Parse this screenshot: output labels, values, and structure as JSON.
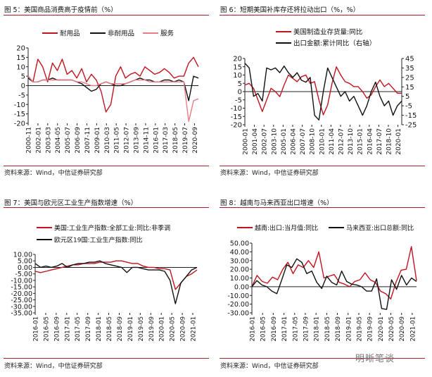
{
  "colors": {
    "red": "#c0141e",
    "black": "#111111",
    "pink": "#e87c86",
    "blue": "#5a7ab8"
  },
  "source": "资料来源：Wind，中信证券研究部",
  "watermark": "明晰笔谈",
  "chart_data": [
    {
      "type": "line",
      "title": "图 5：美国商品消费高于疫情前（%）",
      "x_ticks": [
        "2000-11",
        "2002-01",
        "2003-03",
        "2004-05",
        "2005-07",
        "2006-09",
        "2007-11",
        "2009-01",
        "2010-03",
        "2011-05",
        "2012-07",
        "2013-09",
        "2014-11",
        "2016-01",
        "2017-03",
        "2018-05",
        "2019-07",
        "2020-09"
      ],
      "ylim": [
        -20,
        20
      ],
      "y_ticks": [
        20,
        15,
        10,
        5,
        0,
        -5,
        -10,
        -15,
        -20
      ],
      "series": [
        {
          "name": "耐用品",
          "color": "red",
          "values": [
            5,
            2,
            14,
            10,
            2,
            12,
            8,
            14,
            6,
            8,
            4,
            9,
            2,
            6,
            3,
            -3,
            -14,
            -10,
            5,
            10,
            4,
            6,
            7,
            5,
            10,
            8,
            6,
            7,
            9,
            7,
            4,
            5,
            5,
            12,
            15,
            10
          ]
        },
        {
          "name": "非耐用品",
          "color": "black",
          "values": [
            4,
            2,
            2,
            3,
            3,
            4,
            3,
            3,
            3,
            3,
            2,
            1,
            -1,
            -3,
            -2,
            1,
            2,
            1,
            0,
            0,
            1,
            2,
            3,
            4,
            3,
            3,
            2,
            2,
            3,
            3,
            2,
            3,
            2,
            -8,
            5,
            4
          ]
        },
        {
          "name": "服务",
          "color": "pink",
          "values": [
            5,
            2,
            2,
            3,
            3,
            3,
            3,
            3,
            3,
            3,
            2,
            2,
            1,
            0,
            0,
            1,
            2,
            1,
            1,
            1,
            1,
            2,
            3,
            3,
            3,
            2,
            2,
            2,
            2,
            2,
            2,
            2,
            2,
            -19,
            -8,
            -7
          ]
        }
      ]
    },
    {
      "type": "line",
      "title": "图 6：短期美国补库存还将拉动出口（%，%）",
      "x_ticks": [
        "2000-01",
        "2001-04",
        "2002-07",
        "2003-10",
        "2005-01",
        "2006-04",
        "2007-07",
        "2008-10",
        "2010-01",
        "2011-04",
        "2012-07",
        "2013-10",
        "2015-01",
        "2016-04",
        "2017-07",
        "2018-10",
        "2020-01"
      ],
      "ylim": [
        -20,
        20
      ],
      "y_ticks": [
        20,
        15,
        10,
        5,
        0,
        -5,
        -10,
        -15,
        -20
      ],
      "y2lim": [
        -25,
        45
      ],
      "y2_ticks": [
        45,
        35,
        25,
        15,
        5,
        -5,
        -15,
        -25
      ],
      "series": [
        {
          "name": "美国制造业存货量:同比",
          "color": "red",
          "axis": "left",
          "values": [
            4,
            5,
            2,
            -5,
            -12,
            -5,
            2,
            0,
            -3,
            4,
            10,
            8,
            6,
            9,
            10,
            5,
            6,
            -5,
            -14,
            -8,
            5,
            15,
            10,
            6,
            5,
            3,
            3,
            0,
            -4,
            -2,
            3,
            7,
            3,
            5,
            2,
            -1,
            -1
          ]
        },
        {
          "name": "出口金额:累计同比（右轴）",
          "color": "black",
          "axis": "right",
          "values": [
            40,
            35,
            5,
            8,
            0,
            35,
            33,
            35,
            30,
            37,
            30,
            25,
            30,
            22,
            20,
            25,
            -15,
            -20,
            10,
            35,
            25,
            15,
            5,
            10,
            0,
            5,
            -5,
            -15,
            -5,
            10,
            20,
            5,
            -5,
            0,
            -15,
            -5,
            0
          ]
        }
      ]
    },
    {
      "type": "line",
      "title": "图 7：美国与欧元区工业生产指数增速（%）",
      "x_ticks": [
        "2016-01",
        "2016-05",
        "2016-09",
        "2017-01",
        "2017-05",
        "2017-09",
        "2018-01",
        "2018-05",
        "2018-09",
        "2019-01",
        "2019-05",
        "2019-09",
        "2020-01",
        "2020-05",
        "2020-09",
        "2021-01"
      ],
      "ylim": [
        -35,
        10
      ],
      "y_ticks": [
        "10.00",
        "5.00",
        "0.00",
        "-5.00",
        "-10.00",
        "-15.00",
        "-20.00",
        "-25.00",
        "-30.00",
        "-35.00"
      ],
      "series": [
        {
          "name": "美国:工业生产指数:全部工业:同比:非季调",
          "color": "red",
          "values": [
            -3,
            -4,
            -3,
            -2,
            -1,
            0,
            1,
            2,
            2,
            3,
            3,
            3,
            4,
            4,
            4,
            5,
            5,
            4,
            3,
            3,
            1,
            0,
            0,
            -1,
            -1,
            -2,
            -17,
            -12,
            -7,
            -5,
            -2
          ]
        },
        {
          "name": "欧元区19国:工业生产指数:同比",
          "color": "black",
          "values": [
            3,
            0,
            1,
            0,
            1,
            3,
            0,
            2,
            3,
            3,
            4,
            4,
            5,
            3,
            2,
            1,
            0,
            -4,
            0,
            0,
            -1,
            -2,
            -2,
            -2,
            -3,
            -10,
            -28,
            -12,
            -7,
            -2,
            0
          ]
        }
      ]
    },
    {
      "type": "line",
      "title": "图 8：越南与马来西亚出口增速（%）",
      "x_ticks": [
        "2016-01",
        "2016-05",
        "2016-09",
        "2017-01",
        "2017-05",
        "2017-09",
        "2018-01",
        "2018-05",
        "2018-09",
        "2019-01",
        "2019-05",
        "2019-09",
        "2020-01",
        "2020-05",
        "2020-09",
        "2021-01"
      ],
      "ylim": [
        -30,
        50
      ],
      "y_ticks": [
        "50.00",
        "40.00",
        "30.00",
        "20.00",
        "10.00",
        "0.00",
        "-10.00",
        "-20.00",
        "-30.00"
      ],
      "series": [
        {
          "name": "越南:出口:当月值:同比",
          "color": "red",
          "values": [
            0,
            13,
            6,
            4,
            11,
            8,
            20,
            28,
            15,
            25,
            22,
            30,
            22,
            40,
            10,
            12,
            14,
            5,
            3,
            0,
            6,
            8,
            16,
            8,
            5,
            -5,
            -8,
            -14,
            5,
            19,
            20,
            46,
            7
          ]
        },
        {
          "name": "马来西亚:出口总额:同比",
          "color": "black",
          "values": [
            0,
            7,
            2,
            0,
            -5,
            -8,
            8,
            25,
            22,
            32,
            28,
            15,
            18,
            5,
            -2,
            12,
            5,
            2,
            18,
            6,
            3,
            2,
            0,
            -5,
            -5,
            9,
            -25,
            -26,
            8,
            -3,
            13,
            2,
            10,
            6
          ]
        }
      ]
    }
  ]
}
